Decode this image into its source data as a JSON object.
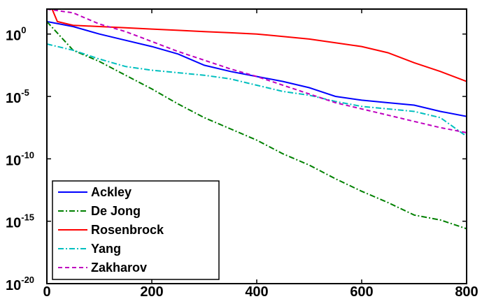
{
  "chart_data": {
    "type": "line",
    "title": "",
    "xlabel": "",
    "ylabel": "",
    "xlim": [
      0,
      800
    ],
    "ylim_log10": [
      -20,
      2
    ],
    "yscale": "log",
    "grid": false,
    "legend_placement": "bottom-left",
    "x_ticks": [
      0,
      200,
      400,
      600,
      800
    ],
    "x_tick_labels": [
      "0",
      "200",
      "400",
      "600",
      "800"
    ],
    "y_ticks_log10": [
      -20,
      -15,
      -10,
      -5,
      0
    ],
    "y_tick_labels": [
      {
        "base": "10",
        "exp": "-20"
      },
      {
        "base": "10",
        "exp": "-15"
      },
      {
        "base": "10",
        "exp": "-10"
      },
      {
        "base": "10",
        "exp": "-5"
      },
      {
        "base": "10",
        "exp": "0"
      }
    ],
    "series": [
      {
        "name": "Ackley",
        "color": "#0000ff",
        "dash": "solid",
        "x": [
          0,
          50,
          100,
          150,
          200,
          250,
          300,
          350,
          400,
          450,
          500,
          550,
          600,
          650,
          700,
          750,
          800
        ],
        "log10_y": [
          1.0,
          0.6,
          0.0,
          -0.5,
          -1.0,
          -1.6,
          -2.5,
          -3.0,
          -3.4,
          -3.8,
          -4.3,
          -5.0,
          -5.3,
          -5.5,
          -5.7,
          -6.2,
          -6.6
        ]
      },
      {
        "name": "De Jong",
        "color": "#008000",
        "dash": "dashdot",
        "x": [
          0,
          50,
          100,
          150,
          200,
          250,
          300,
          350,
          400,
          450,
          500,
          550,
          600,
          650,
          700,
          750,
          800
        ],
        "log10_y": [
          1.0,
          -1.3,
          -2.2,
          -3.3,
          -4.4,
          -5.6,
          -6.7,
          -7.6,
          -8.5,
          -9.6,
          -10.5,
          -11.6,
          -12.6,
          -13.5,
          -14.5,
          -14.9,
          -15.6
        ]
      },
      {
        "name": "Rosenbrock",
        "color": "#ff0000",
        "dash": "solid",
        "x": [
          0,
          10,
          20,
          50,
          100,
          150,
          200,
          250,
          300,
          350,
          400,
          450,
          500,
          550,
          600,
          650,
          700,
          750,
          800
        ],
        "log10_y": [
          3.5,
          2.0,
          1.0,
          0.7,
          0.6,
          0.5,
          0.4,
          0.3,
          0.2,
          0.1,
          0.0,
          -0.2,
          -0.4,
          -0.7,
          -1.0,
          -1.5,
          -2.3,
          -3.0,
          -3.8
        ]
      },
      {
        "name": "Yang",
        "color": "#00bfbf",
        "dash": "dashdot",
        "x": [
          0,
          50,
          100,
          150,
          200,
          250,
          300,
          350,
          400,
          450,
          500,
          550,
          600,
          650,
          700,
          750,
          800
        ],
        "log10_y": [
          -0.8,
          -1.3,
          -2.0,
          -2.6,
          -2.9,
          -3.1,
          -3.3,
          -3.6,
          -4.1,
          -4.6,
          -4.9,
          -5.4,
          -5.8,
          -6.0,
          -6.2,
          -6.7,
          -8.2
        ]
      },
      {
        "name": "Zakharov",
        "color": "#bf00bf",
        "dash": "dashed",
        "x": [
          0,
          50,
          100,
          150,
          200,
          250,
          300,
          350,
          400,
          450,
          500,
          550,
          600,
          650,
          700,
          750,
          800
        ],
        "log10_y": [
          2.0,
          1.7,
          0.8,
          0.2,
          -0.6,
          -1.4,
          -2.1,
          -2.8,
          -3.4,
          -4.1,
          -4.8,
          -5.5,
          -6.0,
          -6.5,
          -7.0,
          -7.5,
          -7.9
        ]
      }
    ]
  }
}
